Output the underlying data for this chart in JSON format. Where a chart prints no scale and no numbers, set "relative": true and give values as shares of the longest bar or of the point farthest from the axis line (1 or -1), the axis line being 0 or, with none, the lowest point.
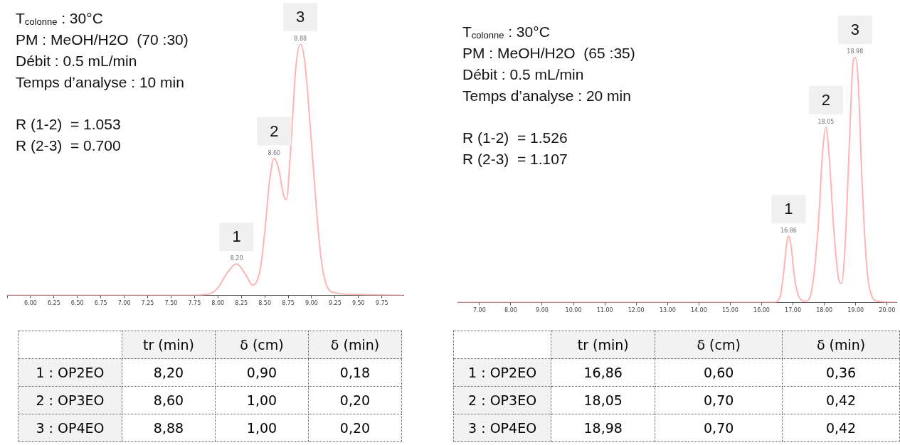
{
  "chart_data": [
    {
      "type": "line",
      "relative": true,
      "tick_labels": "x",
      "annotations": [
        "T$_{colonne}$ : 30°C",
        "PM : MeOH/H2O  (70 :30)",
        "Débit : 0.5 mL/min",
        "Temps d’analyse : 10 min",
        "R (1-2)  = 1.053",
        "R (2-3)  = 0.700",
        {
          "text": "1",
          "x": 8.2,
          "y": 0.125
        },
        {
          "text": "2",
          "x": 8.6,
          "y": 0.545
        },
        {
          "text": "3",
          "x": 8.88,
          "y": 1
        },
        {
          "text": "8.20",
          "x": 8.2,
          "y": 0.125
        },
        {
          "text": "8.60",
          "x": 8.6,
          "y": 0.545
        },
        {
          "text": "8.88",
          "x": 8.88,
          "y": 1
        }
      ],
      "xlim": [
        5.75,
        9.98
      ],
      "xticks": [
        {
          "value": 5.75,
          "label": null
        },
        {
          "value": 6,
          "label": "6.00"
        },
        {
          "value": 6.25,
          "label": "6.25"
        },
        {
          "value": 6.5,
          "label": "6.50"
        },
        {
          "value": 6.75,
          "label": "6.75"
        },
        {
          "value": 7,
          "label": "7.00"
        },
        {
          "value": 7.25,
          "label": "7.25"
        },
        {
          "value": 7.5,
          "label": "7.50"
        },
        {
          "value": 7.75,
          "label": "7.75"
        },
        {
          "value": 8,
          "label": "8.00"
        },
        {
          "value": 8.25,
          "label": "8.25"
        },
        {
          "value": 8.5,
          "label": "8.50"
        },
        {
          "value": 8.75,
          "label": "8.75"
        },
        {
          "value": 9,
          "label": "9.00"
        },
        {
          "value": 9.25,
          "label": "9.25"
        },
        {
          "value": 9.5,
          "label": "9.50"
        },
        {
          "value": 9.75,
          "label": "9.75"
        }
      ],
      "series": [
        {
          "color": "#ffb3b3",
          "x": [
            5.75,
            7.7,
            7.9,
            8.0,
            8.1,
            8.2,
            8.3,
            8.37,
            8.45,
            8.5,
            8.55,
            8.6,
            8.65,
            8.7,
            8.73,
            8.78,
            8.83,
            8.88,
            8.93,
            9.0,
            9.05,
            9.1,
            9.15,
            9.25,
            9.5,
            9.98
          ],
          "values": [
            0,
            0,
            0.005,
            0.03,
            0.09,
            0.125,
            0.08,
            0.04,
            0.1,
            0.25,
            0.45,
            0.545,
            0.5,
            0.4,
            0.38,
            0.6,
            0.9,
            1,
            0.92,
            0.6,
            0.35,
            0.15,
            0.05,
            0.01,
            0.003,
            0
          ]
        }
      ]
    },
    {
      "type": "line",
      "relative": true,
      "tick_labels": "x",
      "annotations": [
        "T$_{colonne}$ : 30°C",
        "PM : MeOH/H2O  (65 :35)",
        "Débit : 0.5 mL/min",
        "Temps d’analyse : 20 min",
        "R (1-2)  = 1.526",
        "R (2-3)  = 1.107",
        {
          "text": "1",
          "x": 16.86,
          "y": 0.27
        },
        {
          "text": "2",
          "x": 18.05,
          "y": 0.714
        },
        {
          "text": "3",
          "x": 18.98,
          "y": 1
        },
        {
          "text": "16.86",
          "x": 16.86,
          "y": 0.27
        },
        {
          "text": "18.05",
          "x": 18.05,
          "y": 0.714
        },
        {
          "text": "18.98",
          "x": 18.98,
          "y": 1
        }
      ],
      "xlim": [
        6.3,
        20.3
      ],
      "xticks": [
        {
          "value": 7,
          "label": "7.00"
        },
        {
          "value": 8,
          "label": "8.00"
        },
        {
          "value": 9,
          "label": "9.00"
        },
        {
          "value": 10,
          "label": "10.00"
        },
        {
          "value": 11,
          "label": "11.00"
        },
        {
          "value": 12,
          "label": "12.00"
        },
        {
          "value": 13,
          "label": "13.00"
        },
        {
          "value": 14,
          "label": "14.00"
        },
        {
          "value": 15,
          "label": "15.00"
        },
        {
          "value": 16,
          "label": "16.00"
        },
        {
          "value": 17,
          "label": "17.00"
        },
        {
          "value": 18,
          "label": "18.00"
        },
        {
          "value": 19,
          "label": "19.00"
        },
        {
          "value": 20,
          "label": "20.00"
        }
      ],
      "series": [
        {
          "color": "#ffb3b3",
          "x": [
            6.3,
            16.4,
            16.6,
            16.7,
            16.8,
            16.83,
            16.86,
            16.89,
            16.95,
            17.05,
            17.2,
            17.4,
            17.6,
            17.8,
            17.95,
            18.05,
            18.15,
            18.3,
            18.45,
            18.55,
            18.65,
            18.8,
            18.9,
            18.98,
            19.08,
            19.2,
            19.35,
            19.5,
            19.7,
            20.3
          ],
          "values": [
            0,
            0,
            0.03,
            0.12,
            0.24,
            0.263,
            0.27,
            0.263,
            0.22,
            0.1,
            0.02,
            0.005,
            0.05,
            0.3,
            0.62,
            0.714,
            0.6,
            0.3,
            0.1,
            0.077,
            0.2,
            0.65,
            0.95,
            1,
            0.9,
            0.5,
            0.15,
            0.03,
            0.005,
            0
          ]
        }
      ]
    },
    {
      "type": "other",
      "categories": [
        "tr (min)",
        "δ (cm)",
        "δ (min)"
      ],
      "y_categories": [
        "1 : OP2EO",
        "2 : OP3EO",
        "3 : OP4EO"
      ],
      "cell_labels": [
        [
          "8,20",
          "0,90",
          "0,18"
        ],
        [
          "8,60",
          "1,00",
          "0,20"
        ],
        [
          "8,88",
          "1,00",
          "0,20"
        ]
      ]
    },
    {
      "type": "other",
      "categories": [
        "tr (min)",
        "δ (cm)",
        "δ (min)"
      ],
      "y_categories": [
        "1 : OP2EO",
        "2 : OP3EO",
        "3 : OP4EO"
      ],
      "cell_labels": [
        [
          "16,86",
          "0,60",
          "0,36"
        ],
        [
          "18,05",
          "0,70",
          "0,42"
        ],
        [
          "18,98",
          "0,70",
          "0,42"
        ]
      ]
    }
  ]
}
